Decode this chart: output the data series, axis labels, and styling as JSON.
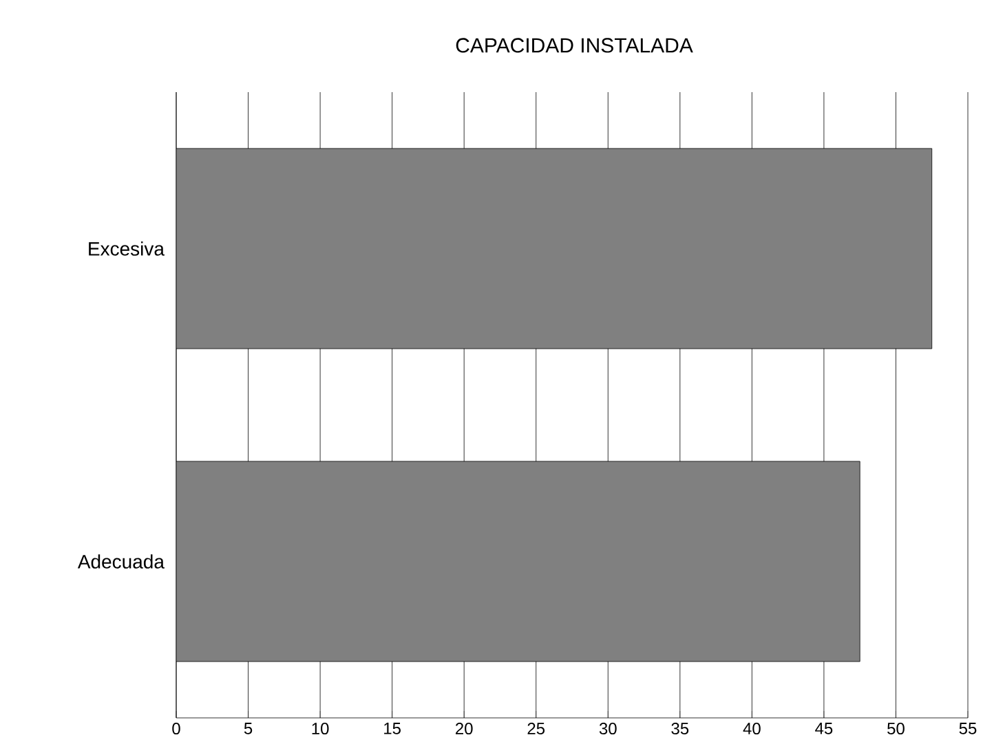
{
  "chart_data": {
    "type": "bar",
    "title": "CAPACIDAD INSTALADA",
    "orientation": "horizontal",
    "categories": [
      "Excesiva",
      "Adecuada"
    ],
    "values": [
      52.5,
      47.5
    ],
    "color": "#808080",
    "xlim": [
      0,
      55
    ],
    "xticks": [
      0,
      5,
      10,
      15,
      20,
      25,
      30,
      35,
      40,
      45,
      50,
      55
    ],
    "grid": "x"
  }
}
